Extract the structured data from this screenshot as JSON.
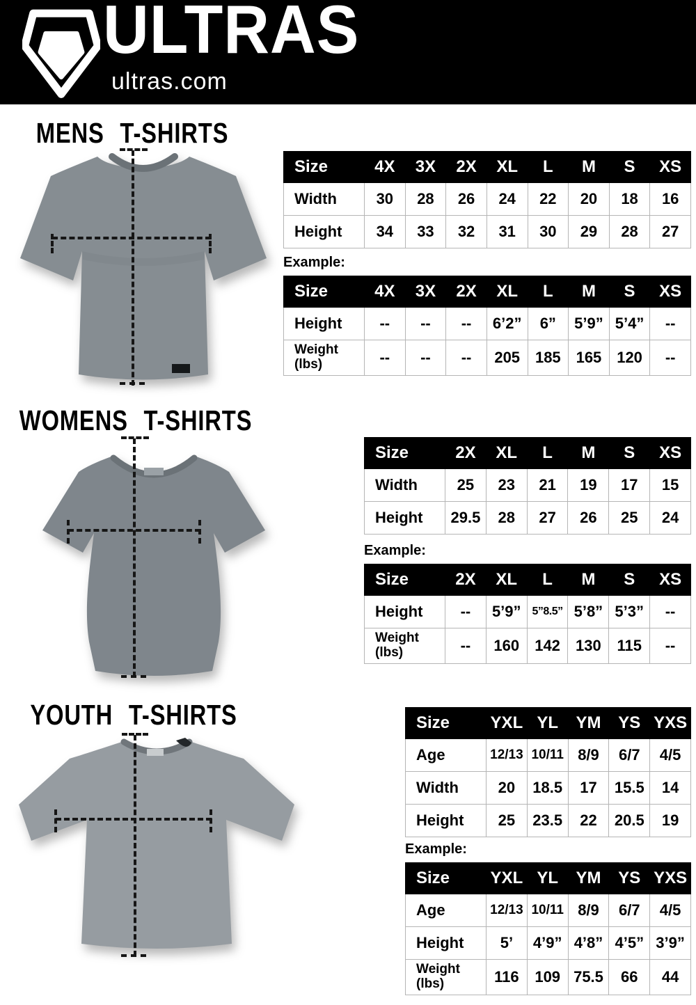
{
  "header": {
    "brand": "ULTRAS",
    "website": "ultras.com",
    "logo_icon": "ultras-shield-logo"
  },
  "colors": {
    "header_bg": "#000000",
    "header_text": "#ffffff",
    "table_header_bg": "#000000",
    "table_header_text": "#ffffff",
    "table_border": "#b5b5b5",
    "dash_color": "#161616",
    "shirt_gray_mens": "#868d92",
    "shirt_gray_womens": "#7f868c",
    "shirt_gray_youth": "#969ca1"
  },
  "sections": [
    {
      "title": "MENS T-SHIRTS",
      "example_label": "Example:",
      "size_table": {
        "columns": [
          "Size",
          "4X",
          "3X",
          "2X",
          "XL",
          "L",
          "M",
          "S",
          "XS"
        ],
        "rows": [
          {
            "label": "Width",
            "values": [
              "30",
              "28",
              "26",
              "24",
              "22",
              "20",
              "18",
              "16"
            ]
          },
          {
            "label": "Height",
            "values": [
              "34",
              "33",
              "32",
              "31",
              "30",
              "29",
              "28",
              "27"
            ]
          }
        ]
      },
      "example_table": {
        "columns": [
          "Size",
          "4X",
          "3X",
          "2X",
          "XL",
          "L",
          "M",
          "S",
          "XS"
        ],
        "rows": [
          {
            "label": "Height",
            "values": [
              "--",
              "--",
              "--",
              "6’2”",
              "6”",
              "5’9”",
              "5’4”",
              "--"
            ]
          },
          {
            "label": "Weight",
            "label2": "(lbs)",
            "values": [
              "--",
              "--",
              "--",
              "205",
              "185",
              "165",
              "120",
              "--"
            ]
          }
        ]
      }
    },
    {
      "title": "WOMENS T-SHIRTS",
      "example_label": "Example:",
      "size_table": {
        "columns": [
          "Size",
          "2X",
          "XL",
          "L",
          "M",
          "S",
          "XS"
        ],
        "rows": [
          {
            "label": "Width",
            "values": [
              "25",
              "23",
              "21",
              "19",
              "17",
              "15"
            ]
          },
          {
            "label": "Height",
            "values": [
              "29.5",
              "28",
              "27",
              "26",
              "25",
              "24"
            ]
          }
        ]
      },
      "example_table": {
        "columns": [
          "Size",
          "2X",
          "XL",
          "L",
          "M",
          "S",
          "XS"
        ],
        "rows": [
          {
            "label": "Height",
            "values": [
              "--",
              "5’9”",
              "5”8.5”",
              "5’8”",
              "5’3”",
              "--"
            ]
          },
          {
            "label": "Weight",
            "label2": "(lbs)",
            "values": [
              "--",
              "160",
              "142",
              "130",
              "115",
              "--"
            ]
          }
        ]
      }
    },
    {
      "title": "YOUTH T-SHIRTS",
      "example_label": "Example:",
      "size_table": {
        "columns": [
          "Size",
          "YXL",
          "YL",
          "YM",
          "YS",
          "YXS"
        ],
        "rows": [
          {
            "label": "Age",
            "values": [
              "12/13",
              "10/11",
              "8/9",
              "6/7",
              "4/5"
            ]
          },
          {
            "label": "Width",
            "values": [
              "20",
              "18.5",
              "17",
              "15.5",
              "14"
            ]
          },
          {
            "label": "Height",
            "values": [
              "25",
              "23.5",
              "22",
              "20.5",
              "19"
            ]
          }
        ]
      },
      "example_table": {
        "columns": [
          "Size",
          "YXL",
          "YL",
          "YM",
          "YS",
          "YXS"
        ],
        "rows": [
          {
            "label": "Age",
            "values": [
              "12/13",
              "10/11",
              "8/9",
              "6/7",
              "4/5"
            ]
          },
          {
            "label": "Height",
            "values": [
              "5’",
              "4’9”",
              "4’8”",
              "4’5”",
              "3’9”"
            ]
          },
          {
            "label": "Weight",
            "label2": "(lbs)",
            "values": [
              "116",
              "109",
              "75.5",
              "66",
              "44"
            ]
          }
        ]
      }
    }
  ]
}
